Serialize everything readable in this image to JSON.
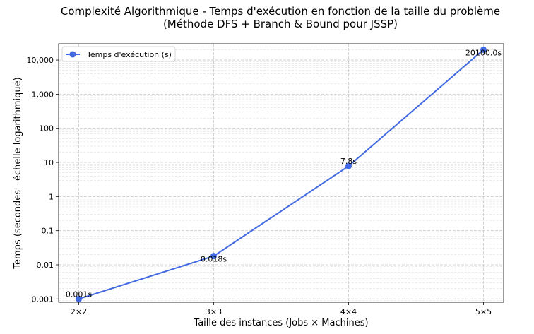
{
  "chart_data": {
    "type": "line",
    "title": "Complexité Algorithmique - Temps d'exécution en fonction de la taille du problème",
    "subtitle": "(Méthode DFS + Branch & Bound pour JSSP)",
    "xlabel": "Taille des instances (Jobs × Machines)",
    "ylabel": "Temps (secondes - échelle logarithmique)",
    "categories": [
      "2×2",
      "3×3",
      "4×4",
      "5×5"
    ],
    "series": [
      {
        "name": "Temps d'exécution (s)",
        "values": [
          0.001,
          0.018,
          7.8,
          20100.0
        ]
      }
    ],
    "data_labels": [
      "0.001s",
      "0.018s",
      "7.8s",
      "20100.0s"
    ],
    "y_scale": "log",
    "ylim": [
      0.0008,
      30000
    ],
    "y_ticks": [
      0.001,
      0.01,
      0.1,
      1,
      10,
      100,
      1000,
      10000
    ],
    "y_tick_labels": [
      "0.001",
      "0.01",
      "0.1",
      "1",
      "10",
      "100",
      "1,000",
      "10,000"
    ],
    "grid": true,
    "legend_position": "upper-left",
    "colors": {
      "line": "#4169e1",
      "grid": "#d9d9d9",
      "axes": "#000000"
    }
  }
}
